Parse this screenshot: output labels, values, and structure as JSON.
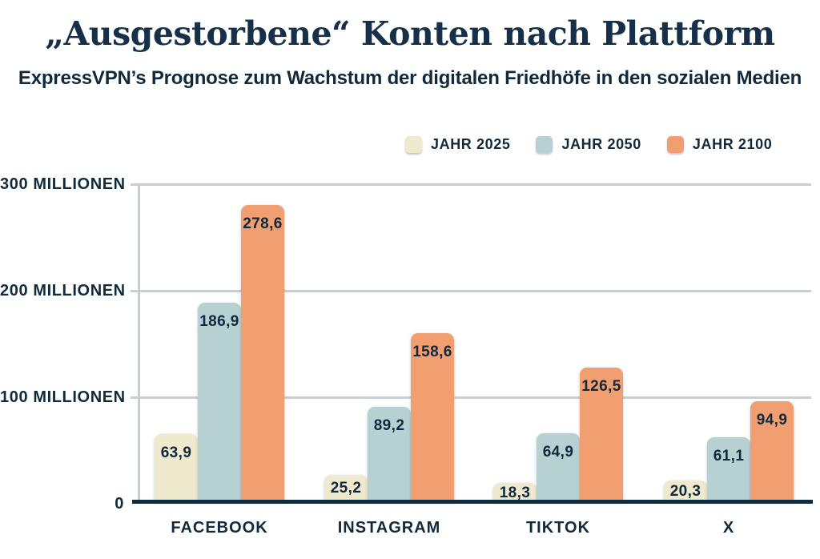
{
  "title": "„Ausgestorbene“ Konten nach Plattform",
  "subtitle": "ExpressVPN’s Prognose zum Wachstum der digitalen Friedhöfe in den sozialen Medien",
  "colors": {
    "background": "#ffffff",
    "title_text": "#16304a",
    "body_text": "#11293c",
    "gridline": "#c9ced2",
    "baseline": "#0f2b3d",
    "series_2025": "#efe9ce",
    "series_2050": "#b7d1d3",
    "series_2100": "#f19e71"
  },
  "chart_data": {
    "type": "bar",
    "title": "„Ausgestorbene“ Konten nach Plattform",
    "subtitle": "ExpressVPN’s Prognose zum Wachstum der digitalen Friedhöfe in den sozialen Medien",
    "categories": [
      "FACEBOOK",
      "INSTAGRAM",
      "TIKTOK",
      "X"
    ],
    "series": [
      {
        "name": "JAHR 2025",
        "color": "#efe9ce",
        "values": [
          63.9,
          25.2,
          18.3,
          20.3
        ],
        "labels": [
          "63,9",
          "25,2",
          "18,3",
          "20,3"
        ]
      },
      {
        "name": "JAHR 2050",
        "color": "#b7d1d3",
        "values": [
          186.9,
          89.2,
          64.9,
          61.1
        ],
        "labels": [
          "186,9",
          "89,2",
          "64,9",
          "61,1"
        ]
      },
      {
        "name": "JAHR 2100",
        "color": "#f19e71",
        "values": [
          278.6,
          158.6,
          126.5,
          94.9
        ],
        "labels": [
          "278,6",
          "158,6",
          "126,5",
          "94,9"
        ]
      }
    ],
    "unit": "Millionen",
    "ylim": [
      0,
      300
    ],
    "y_ticks": [
      {
        "value": 300,
        "label": "300 MILLIONEN"
      },
      {
        "value": 200,
        "label": "200 MILLIONEN"
      },
      {
        "value": 100,
        "label": "100 MILLIONEN"
      },
      {
        "value": 0,
        "label": "0"
      }
    ],
    "grid": true,
    "legend_position": "top-right"
  }
}
